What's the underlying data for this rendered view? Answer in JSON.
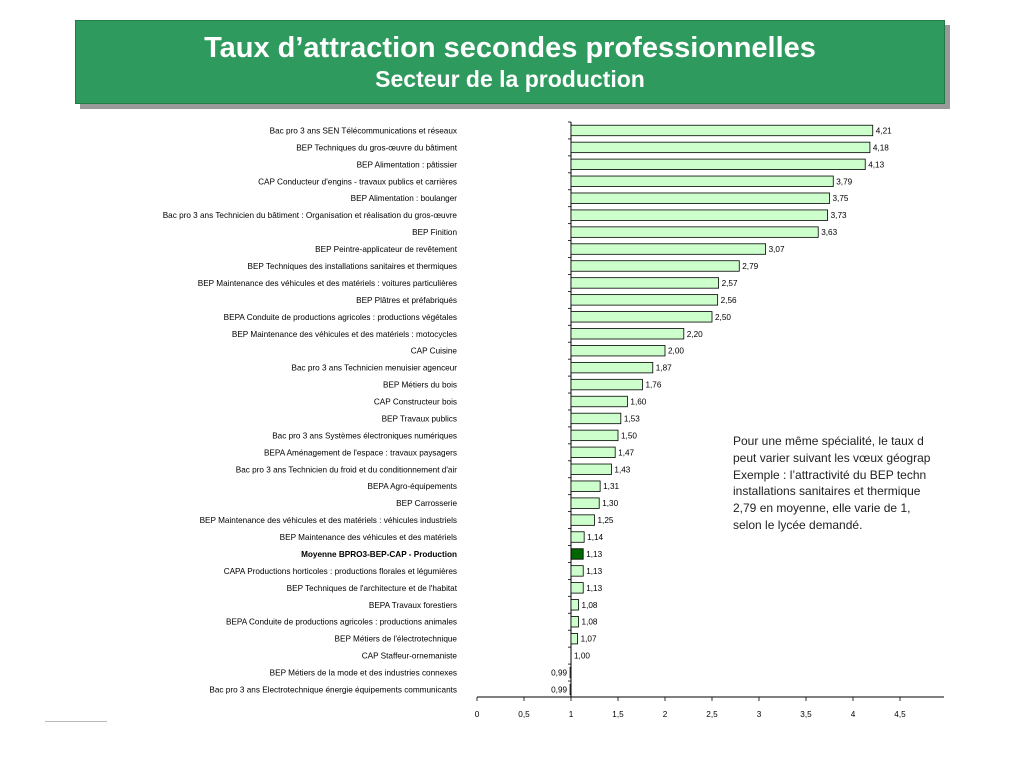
{
  "header": {
    "title": "Taux d’attraction secondes professionnelles",
    "subtitle": "Secteur de la production"
  },
  "note": {
    "lines": [
      "Pour une même spécialité, le taux d",
      "peut varier suivant les vœux géograp",
      "Exemple : l’attractivité du BEP techn",
      "installations sanitaires et thermique",
      "2,79 en moyenne, elle varie de 1,",
      "selon le lycée demandé."
    ]
  },
  "chart_data": {
    "type": "bar",
    "orientation": "horizontal",
    "categories": [
      "Bac pro 3 ans SEN Télécommunications et réseaux",
      "BEP Techniques du gros-œuvre du bâtiment",
      "BEP Alimentation : pâtissier",
      "CAP Conducteur d'engins - travaux publics et carrières",
      "BEP Alimentation : boulanger",
      "Bac pro 3 ans Technicien du bâtiment : Organisation et réalisation du gros-œuvre",
      "BEP Finition",
      "BEP Peintre-applicateur de revêtement",
      "BEP Techniques des installations sanitaires et thermiques",
      "BEP Maintenance des véhicules et des matériels : voitures particulières",
      "BEP Plâtres et préfabriqués",
      "BEPA Conduite de productions agricoles : productions végétales",
      "BEP Maintenance des véhicules et des matériels : motocycles",
      "CAP Cuisine",
      "Bac pro 3 ans Technicien menuisier agenceur",
      "BEP Métiers du bois",
      "CAP Constructeur bois",
      "BEP Travaux publics",
      "Bac pro 3 ans Systèmes électroniques numériques",
      "BEPA Aménagement de l'espace : travaux paysagers",
      "Bac pro 3 ans Technicien du froid et du conditionnement d'air",
      "BEPA Agro-équipements",
      "BEP Carrosserie",
      "BEP Maintenance des véhicules et des matériels : véhicules industriels",
      "BEP Maintenance des véhicules et des matériels",
      "Moyenne BPRO3-BEP-CAP - Production",
      "CAPA Productions horticoles : productions florales et légumières",
      "BEP Techniques de l'architecture et de l'habitat",
      "BEPA Travaux forestiers",
      "BEPA Conduite de productions agricoles : productions animales",
      "BEP Métiers de l'électrotechnique",
      "CAP Staffeur-ornemaniste",
      "BEP Métiers de la mode et des industries connexes",
      "Bac pro 3 ans Electrotechnique énergie équipements communicants"
    ],
    "values": [
      4.21,
      4.18,
      4.13,
      3.79,
      3.75,
      3.73,
      3.63,
      3.07,
      2.79,
      2.57,
      2.56,
      2.5,
      2.2,
      2.0,
      1.87,
      1.76,
      1.6,
      1.53,
      1.5,
      1.47,
      1.43,
      1.31,
      1.3,
      1.25,
      1.14,
      1.13,
      1.13,
      1.13,
      1.08,
      1.08,
      1.07,
      1.0,
      0.99,
      0.99
    ],
    "value_labels": [
      "4,21",
      "4,18",
      "4,13",
      "3,79",
      "3,75",
      "3,73",
      "3,63",
      "3,07",
      "2,79",
      "2,57",
      "2,56",
      "2,50",
      "2,20",
      "2,00",
      "1,87",
      "1,76",
      "1,60",
      "1,53",
      "1,50",
      "1,47",
      "1,43",
      "1,31",
      "1,30",
      "1,25",
      "1,14",
      "1,13",
      "1,13",
      "1,13",
      "1,08",
      "1,08",
      "1,07",
      "1,00",
      "0,99",
      "0,99"
    ],
    "highlight_index": 25,
    "baseline": 1,
    "xlim": [
      0,
      5
    ],
    "xticks": [
      0,
      0.5,
      1,
      1.5,
      2,
      2.5,
      3,
      3.5,
      4,
      4.5
    ],
    "xtick_labels": [
      "0",
      "0,5",
      "1",
      "1,5",
      "2",
      "2,5",
      "3",
      "3,5",
      "4",
      "4,5"
    ],
    "colors": {
      "bar": "#ccffcc",
      "highlight": "#006600",
      "bar_stroke": "#000000"
    },
    "grid": false,
    "legend": "none"
  }
}
